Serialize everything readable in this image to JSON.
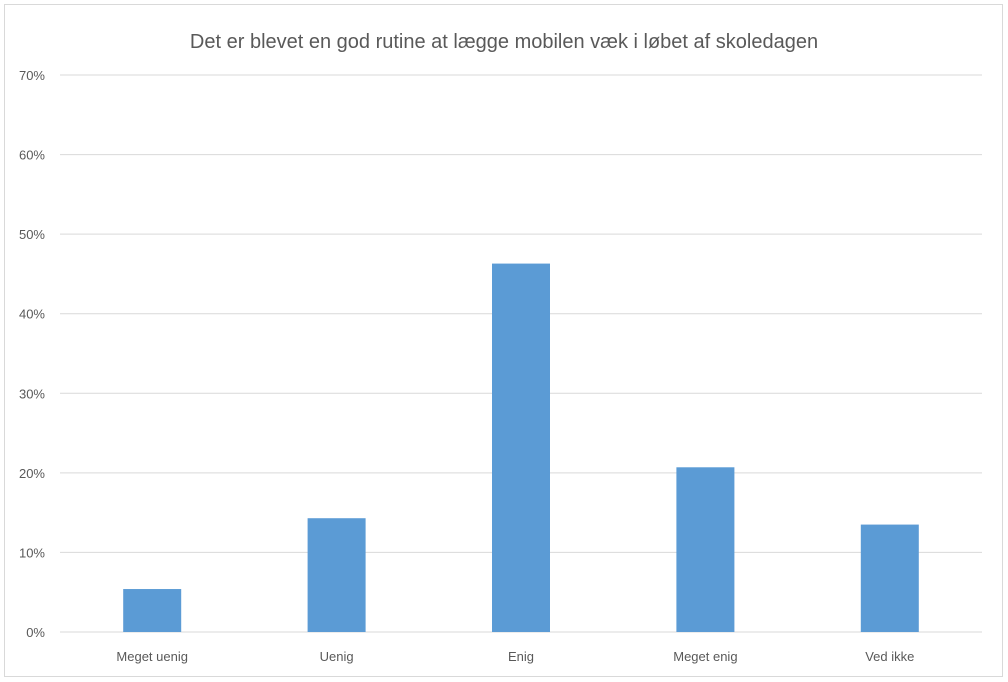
{
  "chart_data": {
    "type": "bar",
    "title": "Det er blevet en god rutine at lægge mobilen væk i løbet af skoledagen",
    "categories": [
      "Meget uenig",
      "Uenig",
      "Enig",
      "Meget enig",
      "Ved ikke"
    ],
    "values": [
      5.4,
      14.3,
      46.3,
      20.7,
      13.5
    ],
    "unit": "%",
    "ylim": [
      0,
      70
    ],
    "yticks": [
      0,
      10,
      20,
      30,
      40,
      50,
      60,
      70
    ],
    "ytick_labels": [
      "0%",
      "10%",
      "20%",
      "30%",
      "40%",
      "50%",
      "60%",
      "70%"
    ],
    "grid": true,
    "bar_color": "#5b9bd5",
    "grid_color": "#d9d9d9",
    "text_color": "#595959"
  }
}
